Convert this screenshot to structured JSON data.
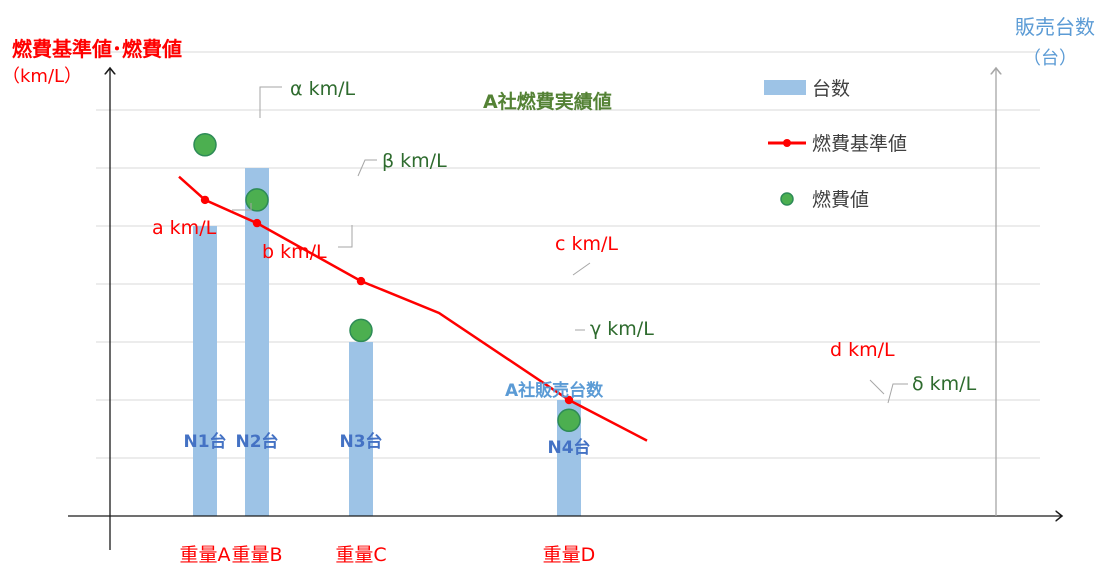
{
  "colors": {
    "grid": "#d9d9d9",
    "axis": "#1a1a1a",
    "right_axis": "#a6a6a6",
    "red": "#ff0000",
    "bar": "#9dc3e6",
    "bar_label": "#4472c4",
    "green_fill": "#4caf50",
    "green_stroke": "#2e8b57",
    "green_text": "#2e6b2e",
    "leader": "#a6a6a6",
    "right_axis_title": "#5b9bd5"
  },
  "chart_data": {
    "type": "bar",
    "left_axis_title": "燃費基準値･燃費値",
    "left_axis_unit": "（km/L）",
    "right_axis_title": "販売台数",
    "right_axis_unit": "（台）",
    "categories": [
      "重量A",
      "重量B",
      "重量C",
      "重量D"
    ],
    "grid": true,
    "ylim": [
      0,
      8
    ],
    "legend": {
      "position": "top-right",
      "items": [
        {
          "label": "台数",
          "kind": "bar"
        },
        {
          "label": "燃費基準値",
          "kind": "line"
        },
        {
          "label": "燃費値",
          "kind": "dot"
        }
      ]
    },
    "series": [
      {
        "name": "台数",
        "type": "bar",
        "values": [
          5,
          6,
          3,
          2
        ],
        "labels": [
          "N1台",
          "N2台",
          "N3台",
          "N4台"
        ]
      },
      {
        "name": "燃費基準値",
        "type": "line",
        "x": [
          -0.5,
          0,
          1,
          3,
          4.5,
          7,
          8.5
        ],
        "y": [
          5.85,
          5.45,
          5.05,
          4.05,
          3.5,
          2.0,
          1.3
        ],
        "markers": [
          {
            "x": 0,
            "y": 5.45,
            "label": "a km/L"
          },
          {
            "x": 1,
            "y": 5.05,
            "label": "b km/L"
          },
          {
            "x": 3,
            "y": 4.05,
            "label": "c km/L"
          },
          {
            "x": 7,
            "y": 2.0,
            "label": "d km/L"
          }
        ]
      },
      {
        "name": "燃費値",
        "type": "scatter",
        "points": [
          {
            "x": 0,
            "y": 6.4,
            "label": "α km/L"
          },
          {
            "x": 1,
            "y": 5.45,
            "label": "β km/L"
          },
          {
            "x": 3,
            "y": 3.2,
            "label": "γ km/L"
          },
          {
            "x": 7,
            "y": 1.65,
            "label": "δ km/L"
          }
        ]
      }
    ],
    "annotations": {
      "fuel_actual": "A社燃費実績値",
      "sales": "A社販売台数"
    }
  }
}
